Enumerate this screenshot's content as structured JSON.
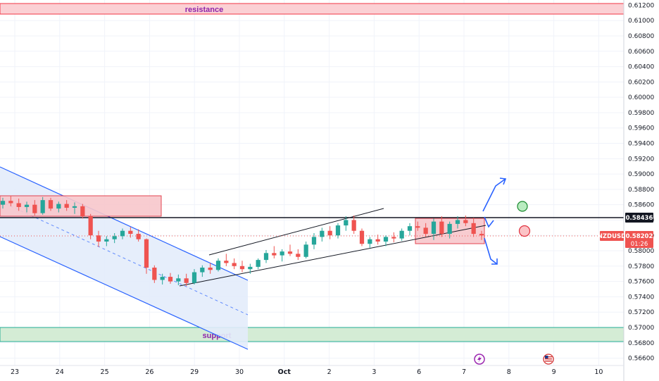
{
  "chart_data": {
    "type": "candlestick",
    "symbol": "NZDUSD",
    "last_price": "0.58202",
    "countdown": "01:26",
    "key_level_label": "0.58436",
    "key_level": 0.58436,
    "y_ticks": [
      "0.61200",
      "0.61000",
      "0.60800",
      "0.60600",
      "0.60400",
      "0.60200",
      "0.60000",
      "0.59800",
      "0.59600",
      "0.59400",
      "0.59200",
      "0.59000",
      "0.58800",
      "0.58600",
      "0.58400",
      "0.58200",
      "0.58000",
      "0.57800",
      "0.57600",
      "0.57400",
      "0.57200",
      "0.57000",
      "0.56800",
      "0.56600"
    ],
    "x_ticks": [
      "23",
      "24",
      "25",
      "26",
      "29",
      "30",
      "Oct",
      "2",
      "3",
      "6",
      "7",
      "8",
      "9",
      "10"
    ],
    "ylim": [
      0.5655,
      0.6125
    ],
    "colors": {
      "up": "#26a69a",
      "down": "#ef5350",
      "channel": "#2962ff",
      "resistance": "#f23645",
      "support": "#22ab94"
    },
    "zones": {
      "resistance": {
        "label": "resistance",
        "from": 0.6105,
        "to": 0.6119
      },
      "support": {
        "label": "support",
        "from": 0.5685,
        "to": 0.5703
      },
      "supply_box": {
        "from": 0.5846,
        "to": 0.5872,
        "x_from": "22",
        "x_to": "26"
      },
      "consolidation_box": {
        "from": 0.5813,
        "to": 0.5845,
        "x_from": "6",
        "x_to": "7"
      }
    },
    "candles": [
      {
        "o": 0.586,
        "h": 0.5869,
        "l": 0.5855,
        "c": 0.5865
      },
      {
        "o": 0.5865,
        "h": 0.5872,
        "l": 0.5858,
        "c": 0.5862
      },
      {
        "o": 0.5862,
        "h": 0.5868,
        "l": 0.5852,
        "c": 0.5857
      },
      {
        "o": 0.5857,
        "h": 0.5864,
        "l": 0.585,
        "c": 0.586
      },
      {
        "o": 0.586,
        "h": 0.5866,
        "l": 0.5846,
        "c": 0.5849
      },
      {
        "o": 0.5849,
        "h": 0.587,
        "l": 0.5847,
        "c": 0.5866
      },
      {
        "o": 0.5866,
        "h": 0.5869,
        "l": 0.5852,
        "c": 0.5855
      },
      {
        "o": 0.5855,
        "h": 0.5864,
        "l": 0.585,
        "c": 0.5861
      },
      {
        "o": 0.5861,
        "h": 0.5866,
        "l": 0.5852,
        "c": 0.5856
      },
      {
        "o": 0.5856,
        "h": 0.5863,
        "l": 0.5848,
        "c": 0.5858
      },
      {
        "o": 0.5858,
        "h": 0.5861,
        "l": 0.5842,
        "c": 0.5845
      },
      {
        "o": 0.5845,
        "h": 0.5848,
        "l": 0.5815,
        "c": 0.582
      },
      {
        "o": 0.582,
        "h": 0.5826,
        "l": 0.5805,
        "c": 0.5812
      },
      {
        "o": 0.5812,
        "h": 0.5819,
        "l": 0.5806,
        "c": 0.5815
      },
      {
        "o": 0.5815,
        "h": 0.5823,
        "l": 0.581,
        "c": 0.5819
      },
      {
        "o": 0.5819,
        "h": 0.5829,
        "l": 0.5815,
        "c": 0.5826
      },
      {
        "o": 0.5826,
        "h": 0.5831,
        "l": 0.5817,
        "c": 0.5822
      },
      {
        "o": 0.5822,
        "h": 0.5828,
        "l": 0.5812,
        "c": 0.5815
      },
      {
        "o": 0.5815,
        "h": 0.5816,
        "l": 0.577,
        "c": 0.5778
      },
      {
        "o": 0.5778,
        "h": 0.5781,
        "l": 0.5758,
        "c": 0.5762
      },
      {
        "o": 0.5762,
        "h": 0.577,
        "l": 0.5756,
        "c": 0.5766
      },
      {
        "o": 0.5766,
        "h": 0.5771,
        "l": 0.5757,
        "c": 0.576
      },
      {
        "o": 0.576,
        "h": 0.5769,
        "l": 0.5755,
        "c": 0.5764
      },
      {
        "o": 0.5764,
        "h": 0.577,
        "l": 0.5754,
        "c": 0.5758
      },
      {
        "o": 0.5758,
        "h": 0.5776,
        "l": 0.5756,
        "c": 0.5772
      },
      {
        "o": 0.5772,
        "h": 0.5781,
        "l": 0.5766,
        "c": 0.5778
      },
      {
        "o": 0.5778,
        "h": 0.5784,
        "l": 0.577,
        "c": 0.5775
      },
      {
        "o": 0.5775,
        "h": 0.579,
        "l": 0.5773,
        "c": 0.5787
      },
      {
        "o": 0.5787,
        "h": 0.5796,
        "l": 0.578,
        "c": 0.5784
      },
      {
        "o": 0.5784,
        "h": 0.579,
        "l": 0.5776,
        "c": 0.578
      },
      {
        "o": 0.578,
        "h": 0.5787,
        "l": 0.5772,
        "c": 0.5776
      },
      {
        "o": 0.5776,
        "h": 0.5783,
        "l": 0.577,
        "c": 0.5779
      },
      {
        "o": 0.5779,
        "h": 0.579,
        "l": 0.5776,
        "c": 0.5788
      },
      {
        "o": 0.5788,
        "h": 0.5801,
        "l": 0.5784,
        "c": 0.5797
      },
      {
        "o": 0.5797,
        "h": 0.5806,
        "l": 0.579,
        "c": 0.5794
      },
      {
        "o": 0.5794,
        "h": 0.5802,
        "l": 0.5786,
        "c": 0.5799
      },
      {
        "o": 0.5799,
        "h": 0.5808,
        "l": 0.5793,
        "c": 0.5796
      },
      {
        "o": 0.5796,
        "h": 0.5802,
        "l": 0.5788,
        "c": 0.5792
      },
      {
        "o": 0.5792,
        "h": 0.5812,
        "l": 0.579,
        "c": 0.5808
      },
      {
        "o": 0.5808,
        "h": 0.5823,
        "l": 0.5802,
        "c": 0.5818
      },
      {
        "o": 0.5818,
        "h": 0.583,
        "l": 0.5812,
        "c": 0.5826
      },
      {
        "o": 0.5826,
        "h": 0.5832,
        "l": 0.5815,
        "c": 0.582
      },
      {
        "o": 0.582,
        "h": 0.5836,
        "l": 0.5816,
        "c": 0.5833
      },
      {
        "o": 0.5833,
        "h": 0.5845,
        "l": 0.5826,
        "c": 0.584
      },
      {
        "o": 0.584,
        "h": 0.5846,
        "l": 0.5822,
        "c": 0.5826
      },
      {
        "o": 0.5826,
        "h": 0.5829,
        "l": 0.5806,
        "c": 0.5809
      },
      {
        "o": 0.5809,
        "h": 0.5818,
        "l": 0.5804,
        "c": 0.5815
      },
      {
        "o": 0.5815,
        "h": 0.5821,
        "l": 0.5808,
        "c": 0.5812
      },
      {
        "o": 0.5812,
        "h": 0.582,
        "l": 0.5806,
        "c": 0.5818
      },
      {
        "o": 0.5818,
        "h": 0.5824,
        "l": 0.5811,
        "c": 0.5816
      },
      {
        "o": 0.5816,
        "h": 0.5829,
        "l": 0.5813,
        "c": 0.5826
      },
      {
        "o": 0.5826,
        "h": 0.5836,
        "l": 0.582,
        "c": 0.5832
      },
      {
        "o": 0.5832,
        "h": 0.5838,
        "l": 0.5826,
        "c": 0.583
      },
      {
        "o": 0.583,
        "h": 0.5836,
        "l": 0.5818,
        "c": 0.5822
      },
      {
        "o": 0.5822,
        "h": 0.5842,
        "l": 0.5814,
        "c": 0.5838
      },
      {
        "o": 0.5838,
        "h": 0.5845,
        "l": 0.5818,
        "c": 0.5822
      },
      {
        "o": 0.5822,
        "h": 0.5838,
        "l": 0.5816,
        "c": 0.5835
      },
      {
        "o": 0.5835,
        "h": 0.5845,
        "l": 0.5829,
        "c": 0.584
      },
      {
        "o": 0.584,
        "h": 0.5846,
        "l": 0.5832,
        "c": 0.5836
      },
      {
        "o": 0.5836,
        "h": 0.5843,
        "l": 0.5818,
        "c": 0.5822
      },
      {
        "o": 0.5822,
        "h": 0.5826,
        "l": 0.5814,
        "c": 0.582
      }
    ]
  }
}
